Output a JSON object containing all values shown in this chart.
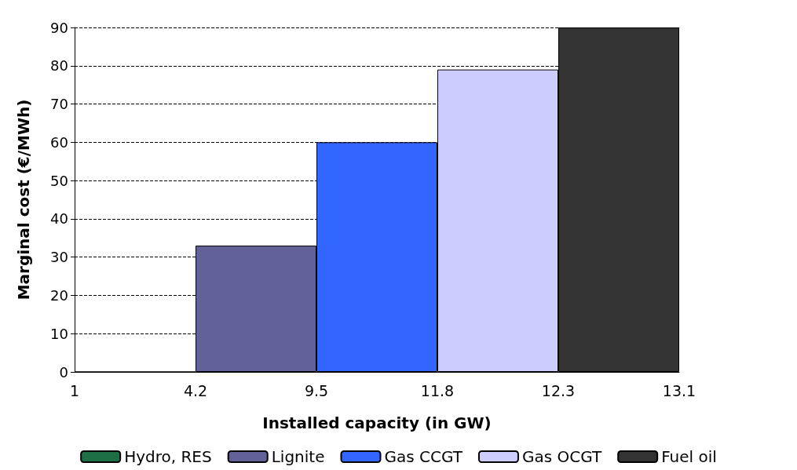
{
  "chart_data": {
    "type": "bar",
    "xlabel": "Installed capacity (in GW)",
    "ylabel": "Marginal cost (€/MWh)",
    "categories": [
      "1",
      "4.2",
      "9.5",
      "11.8",
      "12.3",
      "13.1"
    ],
    "series": [
      {
        "name": "Hydro, RES",
        "color": "#1e6e46",
        "values": [
          0,
          null,
          null,
          null,
          null,
          null
        ]
      },
      {
        "name": "Lignite",
        "color": "#626298",
        "values": [
          null,
          33,
          null,
          null,
          null,
          null
        ]
      },
      {
        "name": "Gas CCGT",
        "color": "#3366ff",
        "values": [
          null,
          null,
          60,
          null,
          null,
          null
        ]
      },
      {
        "name": "Gas OCGT",
        "color": "#ccccff",
        "values": [
          null,
          null,
          null,
          79,
          null,
          null
        ]
      },
      {
        "name": "Fuel oil",
        "color": "#333333",
        "values": [
          null,
          null,
          null,
          null,
          90,
          null
        ]
      }
    ],
    "ylim": [
      0,
      90
    ],
    "yticks": [
      0,
      10,
      20,
      30,
      40,
      50,
      60,
      70,
      80,
      90
    ],
    "grid": "y",
    "legend": "bottom"
  }
}
